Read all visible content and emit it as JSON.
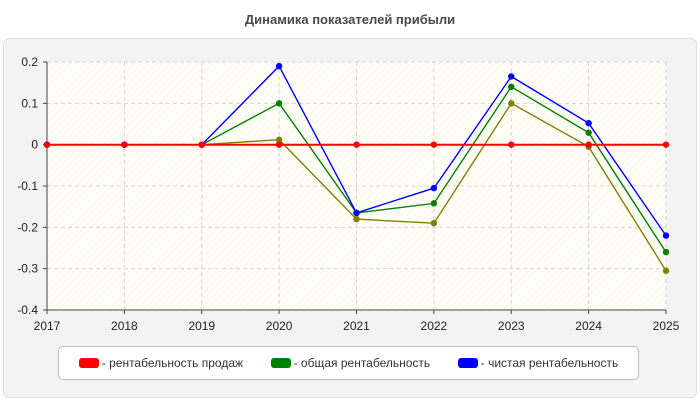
{
  "chart_data": {
    "type": "line",
    "title": "Динамика показателей прибыли",
    "x": [
      "2017",
      "2018",
      "2019",
      "2020",
      "2021",
      "2022",
      "2023",
      "2024",
      "2025"
    ],
    "ylim": [
      -0.4,
      0.2
    ],
    "yticks": [
      "0.2",
      "0.1",
      "0",
      "-0.1",
      "-0.2",
      "-0.3",
      "-0.4"
    ],
    "grid": true,
    "legend_position": "bottom",
    "series": [
      {
        "name": "- рентабельность продаж",
        "color": "#ff0000",
        "values": [
          0,
          0,
          0,
          0,
          0,
          0,
          0,
          0,
          0
        ]
      },
      {
        "name": "- общая рентабельность",
        "color": "#008000",
        "values": [
          0,
          0,
          0,
          0.1,
          -0.165,
          -0.142,
          0.14,
          0.029,
          -0.26
        ]
      },
      {
        "name": "- чистая рентабельность",
        "color": "#0000ff",
        "values": [
          0,
          0,
          0,
          0.19,
          -0.165,
          -0.105,
          0.165,
          0.052,
          -0.22
        ]
      },
      {
        "name": "",
        "color": "#808000",
        "values": [
          0,
          0,
          0,
          0.012,
          -0.18,
          -0.19,
          0.1,
          -0.005,
          -0.305
        ]
      }
    ],
    "legend_series": [
      0,
      1,
      2
    ]
  }
}
